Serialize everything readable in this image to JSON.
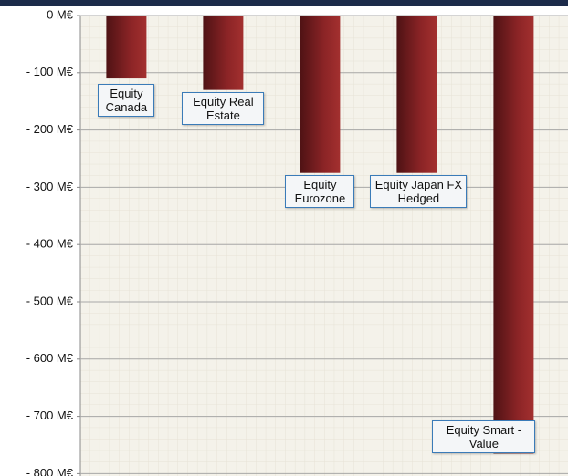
{
  "chart_data": {
    "type": "bar",
    "categories": [
      "Equity Canada",
      "Equity Real Estate",
      "Equity Eurozone",
      "Equity Japan FX Hedged",
      "Equity Smart - Value"
    ],
    "values": [
      -110,
      -130,
      -275,
      -275,
      -765
    ],
    "color": "#8b2426",
    "ylim": [
      -800,
      0
    ],
    "yticks": [
      {
        "value": 0,
        "label": "0 M€"
      },
      {
        "value": -100,
        "label": "- 100 M€"
      },
      {
        "value": -200,
        "label": "- 200 M€"
      },
      {
        "value": -300,
        "label": "- 300 M€"
      },
      {
        "value": -400,
        "label": "- 400 M€"
      },
      {
        "value": -500,
        "label": "- 500 M€"
      },
      {
        "value": -600,
        "label": "- 600 M€"
      },
      {
        "value": -700,
        "label": "- 700 M€"
      },
      {
        "value": -800,
        "label": "- 800 M€"
      }
    ],
    "grid": true
  }
}
